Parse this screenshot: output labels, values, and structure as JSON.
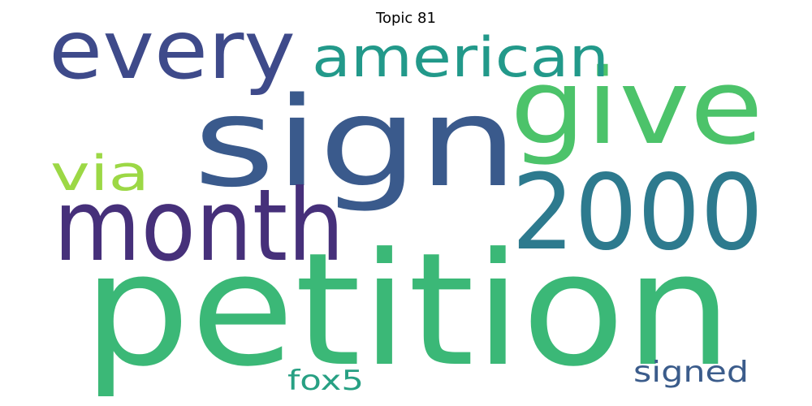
{
  "title": "Topic 81",
  "words": [
    {
      "text": "petition",
      "color": "#3bb877"
    },
    {
      "text": "sign",
      "color": "#3a5a8c"
    },
    {
      "text": "give",
      "color": "#4cc36a"
    },
    {
      "text": "2000",
      "color": "#2d7a8e"
    },
    {
      "text": "month",
      "color": "#46307a"
    },
    {
      "text": "every",
      "color": "#3e4a8a"
    },
    {
      "text": "american",
      "color": "#22998a"
    },
    {
      "text": "via",
      "color": "#9cd845"
    },
    {
      "text": "signed",
      "color": "#3b5c8b"
    },
    {
      "text": "fox5",
      "color": "#27a083"
    }
  ]
}
